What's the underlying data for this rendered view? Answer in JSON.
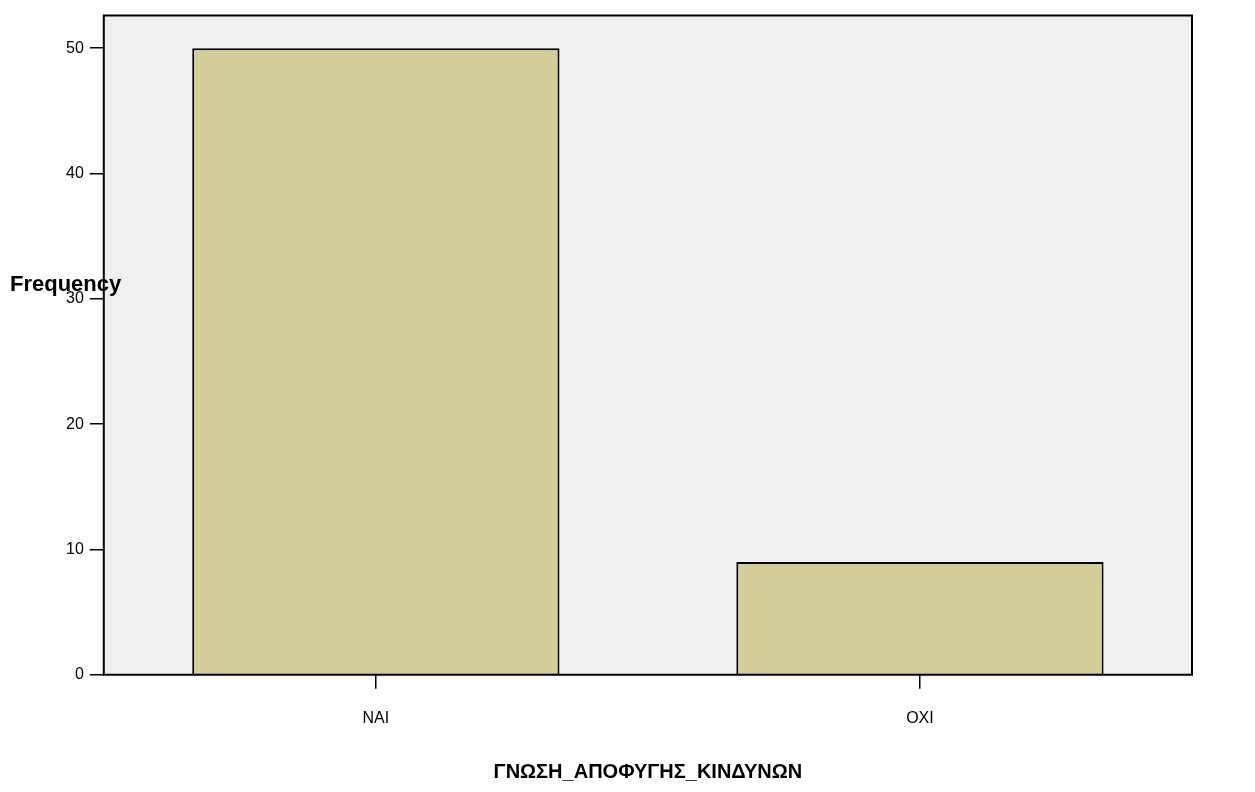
{
  "chart_data": {
    "type": "bar",
    "xlabel": "ΓΝΩΣΗ_ΑΠΟΦΥΓΗΣ_ΚΙΝΔΥΝΩΝ",
    "ylabel": "Frequency",
    "categories": [
      "NAI",
      "OXI"
    ],
    "values": [
      50,
      9
    ],
    "color": "#d3ce97",
    "ylim": [
      0,
      52.6
    ],
    "yticks": [
      0,
      10,
      20,
      30,
      40,
      50
    ],
    "grid": false,
    "legend": false
  }
}
